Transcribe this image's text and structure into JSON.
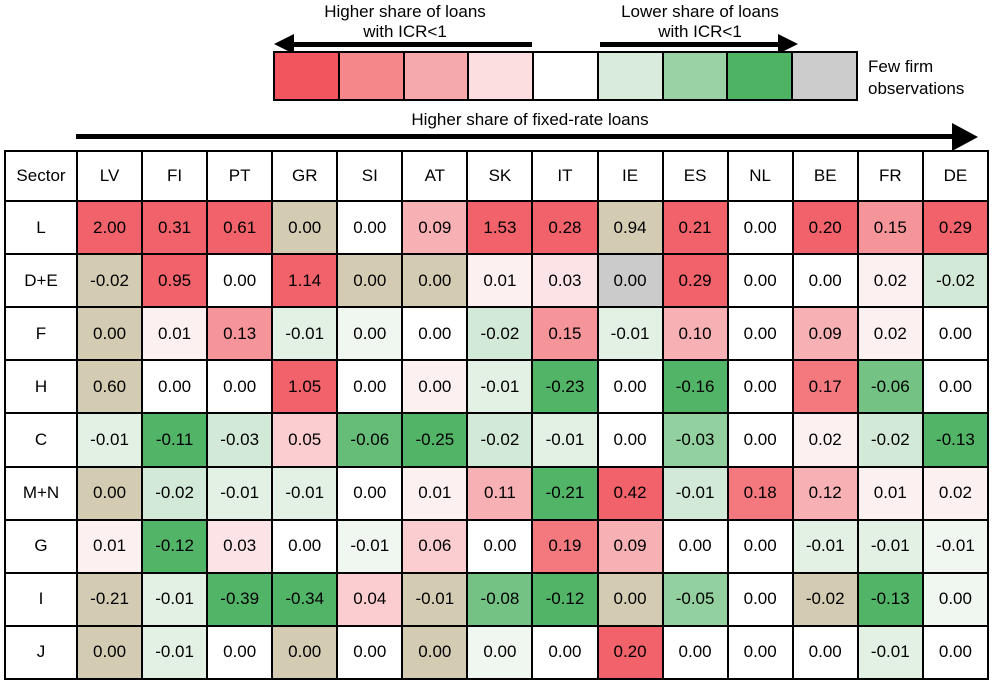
{
  "chart_data": {
    "type": "heatmap",
    "annotations": {
      "left_arrow_label": [
        "Higher share of loans",
        "with ICR<1"
      ],
      "right_arrow_label": [
        "Lower share of loans",
        "with ICR<1"
      ],
      "few_obs_label": [
        "Few firm",
        "observations"
      ],
      "x_arrow_label": "Higher share of fixed-rate loans"
    },
    "legend_swatches": [
      "#f2555d",
      "#f5878b",
      "#f6a9ad",
      "#fcdde0",
      "#ffffff",
      "#d9ecdb",
      "#9bd2a5",
      "#4eb363",
      "#cccccc"
    ],
    "corner_header": "Sector",
    "columns": [
      "LV",
      "FI",
      "PT",
      "GR",
      "SI",
      "AT",
      "SK",
      "IT",
      "IE",
      "ES",
      "NL",
      "BE",
      "FR",
      "DE"
    ],
    "rows": [
      "L",
      "D+E",
      "F",
      "H",
      "C",
      "M+N",
      "G",
      "I",
      "J"
    ],
    "values": [
      [
        2.0,
        0.31,
        0.61,
        0.0,
        0.0,
        0.09,
        1.53,
        0.28,
        0.94,
        0.21,
        0.0,
        0.2,
        0.15,
        0.29
      ],
      [
        -0.02,
        0.95,
        0.0,
        1.14,
        0.0,
        0.0,
        0.01,
        0.03,
        0.0,
        0.29,
        0.0,
        0.0,
        0.02,
        -0.02
      ],
      [
        0.0,
        0.01,
        0.13,
        -0.01,
        0.0,
        0.0,
        -0.02,
        0.15,
        -0.01,
        0.1,
        0.0,
        0.09,
        0.02,
        0.0
      ],
      [
        0.6,
        0.0,
        0.0,
        1.05,
        0.0,
        0.0,
        -0.01,
        -0.23,
        0.0,
        -0.16,
        0.0,
        0.17,
        -0.06,
        0.0
      ],
      [
        -0.01,
        -0.11,
        -0.03,
        0.05,
        -0.06,
        -0.25,
        -0.02,
        -0.01,
        0.0,
        -0.03,
        0.0,
        0.02,
        -0.02,
        -0.13
      ],
      [
        0.0,
        -0.02,
        -0.01,
        -0.01,
        0.0,
        0.01,
        0.11,
        -0.21,
        0.42,
        -0.01,
        0.18,
        0.12,
        0.01,
        0.02
      ],
      [
        0.01,
        -0.12,
        0.03,
        0.0,
        -0.01,
        0.06,
        0.0,
        0.19,
        0.09,
        0.0,
        0.0,
        -0.01,
        -0.01,
        -0.01
      ],
      [
        -0.21,
        -0.01,
        -0.39,
        -0.34,
        0.04,
        -0.01,
        -0.08,
        -0.12,
        0.0,
        -0.05,
        0.0,
        -0.02,
        -0.13,
        0.0
      ],
      [
        0.0,
        -0.01,
        0.0,
        0.0,
        0.0,
        0.0,
        0.0,
        0.0,
        0.2,
        0.0,
        0.0,
        0.0,
        -0.01,
        0.0
      ]
    ],
    "cell_colors": [
      [
        "SR",
        "SR",
        "SR",
        "TAN",
        "W",
        "P2",
        "SR",
        "SR",
        "TAN",
        "SR",
        "W",
        "SR",
        "SAL",
        "SR"
      ],
      [
        "TAN",
        "SR",
        "W",
        "SR",
        "TAN",
        "TAN",
        "P5",
        "P4",
        "GRAY",
        "SR",
        "W",
        "W",
        "P5",
        "G2"
      ],
      [
        "TAN",
        "P5",
        "SAL",
        "G1",
        "G0",
        "W",
        "G2",
        "SAL",
        "G1",
        "P2",
        "W",
        "P2",
        "P5",
        "W"
      ],
      [
        "TAN",
        "W",
        "W",
        "SR",
        "W",
        "P5",
        "G1",
        "G5",
        "W",
        "G5",
        "W",
        "R17",
        "G35",
        "W"
      ],
      [
        "G1",
        "G5",
        "G2",
        "P3",
        "G4h",
        "G5",
        "G2",
        "G1",
        "W",
        "G3",
        "W",
        "P5",
        "G2",
        "G5"
      ],
      [
        "TAN",
        "G2",
        "G1",
        "G1",
        "W",
        "P5",
        "P2",
        "G5",
        "SR",
        "G2",
        "R17",
        "P2",
        "P5",
        "P5"
      ],
      [
        "P5",
        "G5",
        "P4",
        "W",
        "G0",
        "P3",
        "W",
        "R17",
        "P2",
        "W",
        "W",
        "G1",
        "G1",
        "G0"
      ],
      [
        "TAN",
        "G1",
        "G5",
        "G5",
        "P3",
        "TAN",
        "G35",
        "G5",
        "TAN",
        "G3",
        "W",
        "TAN",
        "G5",
        "G0"
      ],
      [
        "TAN",
        "G1",
        "W",
        "TAN",
        "W",
        "TAN",
        "G0",
        "W",
        "SR",
        "W",
        "W",
        "W",
        "G1",
        "W"
      ]
    ],
    "palette": {
      "SR": "#f2626a",
      "R17": "#f4797f",
      "SAL": "#f5959a",
      "P2": "#f7b1b5",
      "P3": "#fbcdd0",
      "P4": "#fce4e6",
      "P5": "#fdf0f1",
      "W": "#ffffff",
      "G0": "#f0f7f1",
      "G1": "#e3f1e5",
      "G2": "#d3e9d7",
      "G3": "#93d09f",
      "G35": "#74c385",
      "G4h": "#66bd78",
      "G5": "#52b467",
      "TAN": "#d3ccb3",
      "GRAY": "#cbcbcb"
    }
  }
}
